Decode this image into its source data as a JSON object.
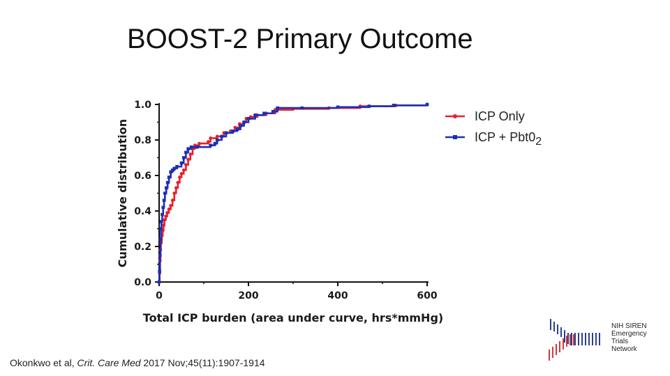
{
  "slide": {
    "title": "BOOST-2 Primary Outcome",
    "citation": {
      "authors": "Okonkwo et al, ",
      "journal": "Crit. Care Med",
      "details": " 2017 Nov;45(11):1907-1914"
    },
    "logo": {
      "line1": "NIH SIREN",
      "line2": "Emergency",
      "line3": "Trials",
      "line4": "Network"
    }
  },
  "chart_data": {
    "type": "line",
    "step": true,
    "xlabel": "Total ICP burden (area under curve, hrs*mmHg)",
    "ylabel": "Cumulative distribution",
    "xlim": [
      0,
      600
    ],
    "ylim": [
      0,
      1.0
    ],
    "xticks": [
      "0",
      "200",
      "400",
      "600"
    ],
    "yticks": [
      "0.0",
      "0.2",
      "0.4",
      "0.6",
      "0.8",
      "1.0"
    ],
    "grid": false,
    "legend_position": "right",
    "series": [
      {
        "name": "ICP Only",
        "name_main": "ICP Only",
        "name_sub": "",
        "color": "#e8202a",
        "marker": "circle",
        "points": [
          [
            0,
            0
          ],
          [
            1,
            0.05
          ],
          [
            2,
            0.12
          ],
          [
            3,
            0.18
          ],
          [
            4,
            0.22
          ],
          [
            6,
            0.26
          ],
          [
            8,
            0.29
          ],
          [
            10,
            0.32
          ],
          [
            12,
            0.35
          ],
          [
            15,
            0.37
          ],
          [
            18,
            0.39
          ],
          [
            22,
            0.41
          ],
          [
            26,
            0.43
          ],
          [
            30,
            0.46
          ],
          [
            34,
            0.5
          ],
          [
            38,
            0.53
          ],
          [
            42,
            0.56
          ],
          [
            46,
            0.59
          ],
          [
            50,
            0.61
          ],
          [
            55,
            0.63
          ],
          [
            60,
            0.66
          ],
          [
            65,
            0.69
          ],
          [
            70,
            0.72
          ],
          [
            75,
            0.75
          ],
          [
            80,
            0.77
          ],
          [
            90,
            0.78
          ],
          [
            110,
            0.79
          ],
          [
            115,
            0.81
          ],
          [
            130,
            0.82
          ],
          [
            145,
            0.84
          ],
          [
            160,
            0.85
          ],
          [
            170,
            0.87
          ],
          [
            180,
            0.89
          ],
          [
            190,
            0.9
          ],
          [
            195,
            0.92
          ],
          [
            205,
            0.93
          ],
          [
            220,
            0.94
          ],
          [
            240,
            0.95
          ],
          [
            260,
            0.97
          ],
          [
            300,
            0.975
          ],
          [
            380,
            0.98
          ],
          [
            450,
            0.99
          ],
          [
            530,
            0.995
          ],
          [
            600,
            1.0
          ]
        ]
      },
      {
        "name": "ICP + PbtO2",
        "name_main": "ICP + Pbt0",
        "name_sub": "2",
        "color": "#1c2fb8",
        "marker": "square",
        "points": [
          [
            0,
            0
          ],
          [
            1,
            0.06
          ],
          [
            2,
            0.15
          ],
          [
            3,
            0.24
          ],
          [
            4,
            0.3
          ],
          [
            5,
            0.34
          ],
          [
            7,
            0.38
          ],
          [
            9,
            0.42
          ],
          [
            11,
            0.46
          ],
          [
            13,
            0.5
          ],
          [
            16,
            0.53
          ],
          [
            19,
            0.56
          ],
          [
            22,
            0.59
          ],
          [
            26,
            0.62
          ],
          [
            30,
            0.63
          ],
          [
            34,
            0.64
          ],
          [
            40,
            0.65
          ],
          [
            50,
            0.67
          ],
          [
            55,
            0.7
          ],
          [
            60,
            0.73
          ],
          [
            65,
            0.75
          ],
          [
            72,
            0.76
          ],
          [
            85,
            0.76
          ],
          [
            115,
            0.77
          ],
          [
            125,
            0.78
          ],
          [
            130,
            0.8
          ],
          [
            140,
            0.82
          ],
          [
            150,
            0.84
          ],
          [
            165,
            0.85
          ],
          [
            175,
            0.86
          ],
          [
            182,
            0.88
          ],
          [
            190,
            0.9
          ],
          [
            200,
            0.92
          ],
          [
            215,
            0.94
          ],
          [
            235,
            0.95
          ],
          [
            255,
            0.96
          ],
          [
            265,
            0.98
          ],
          [
            320,
            0.98
          ],
          [
            400,
            0.985
          ],
          [
            470,
            0.99
          ],
          [
            525,
            0.995
          ],
          [
            600,
            1.0
          ]
        ]
      }
    ]
  }
}
